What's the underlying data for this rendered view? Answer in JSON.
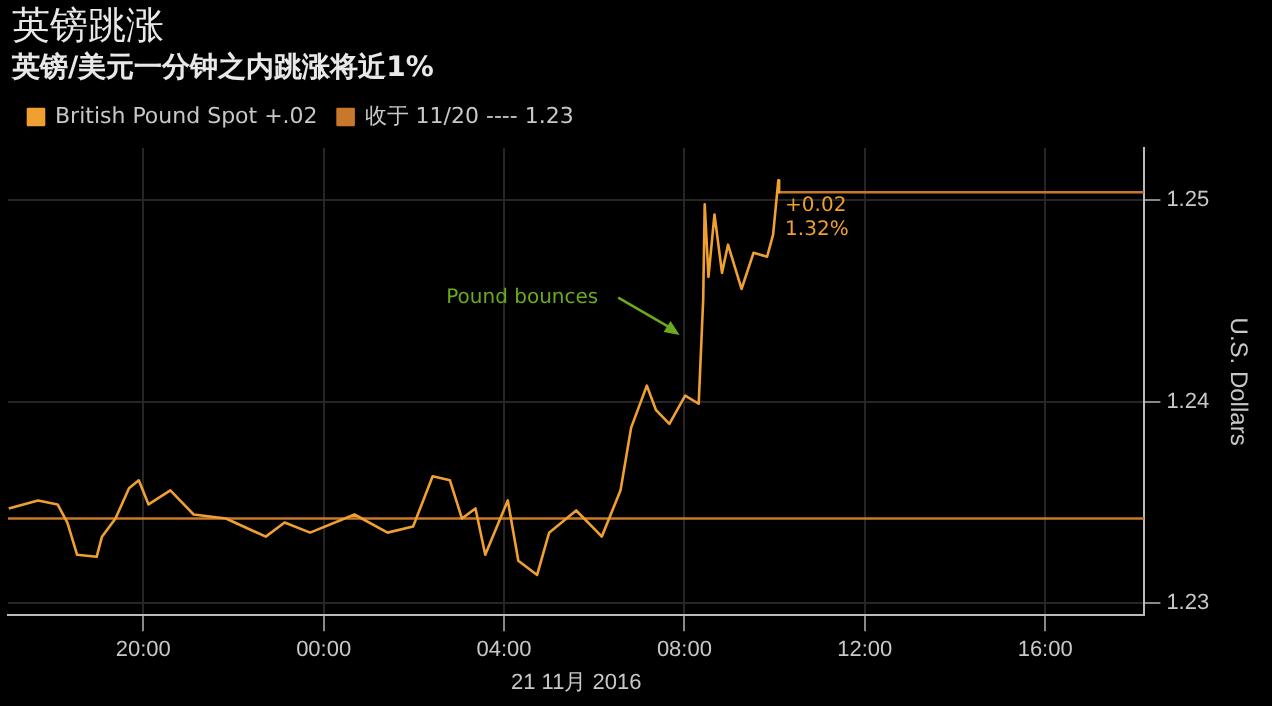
{
  "chart_data": {
    "type": "line",
    "title": "英镑跳涨",
    "subtitle": "英镑/美元一分钟之内跳涨将近1%",
    "xlabel": "21 11月 2016",
    "ylabel": "U.S. Dollars",
    "xlim": [
      "2016-11-20T17:00",
      "2016-11-21T18:12"
    ],
    "xticks": [
      {
        "value": "2016-11-20T20:00",
        "label": "20:00"
      },
      {
        "value": "2016-11-21T00:00",
        "label": "00:00"
      },
      {
        "value": "2016-11-21T04:00",
        "label": "04:00"
      },
      {
        "value": "2016-11-21T08:00",
        "label": "08:00"
      },
      {
        "value": "2016-11-21T12:00",
        "label": "12:00"
      },
      {
        "value": "2016-11-21T16:00",
        "label": "16:00"
      }
    ],
    "ylim": [
      1.2294,
      1.2526
    ],
    "yticks": [
      1.23,
      1.24,
      1.25
    ],
    "grid": true,
    "legend": "top left",
    "marker": "none",
    "line_style": "solid",
    "series": [
      {
        "name": "British Pound Spot +.02",
        "color": "#f0a030",
        "x": [
          "2016-11-20T17:01",
          "2016-11-20T17:40",
          "2016-11-20T18:06",
          "2016-11-20T18:19",
          "2016-11-20T18:32",
          "2016-11-20T18:58",
          "2016-11-20T19:05",
          "2016-11-20T19:23",
          "2016-11-20T19:41",
          "2016-11-20T19:54",
          "2016-11-20T20:07",
          "2016-11-20T20:36",
          "2016-11-20T21:07",
          "2016-11-20T21:50",
          "2016-11-20T22:43",
          "2016-11-20T23:08",
          "2016-11-20T23:42",
          "2016-11-21T00:41",
          "2016-11-21T01:25",
          "2016-11-21T01:59",
          "2016-11-21T02:25",
          "2016-11-21T02:48",
          "2016-11-21T03:04",
          "2016-11-21T03:22",
          "2016-11-21T03:35",
          "2016-11-21T04:05",
          "2016-11-21T04:19",
          "2016-11-21T04:44",
          "2016-11-21T05:00",
          "2016-11-21T05:36",
          "2016-11-21T06:05",
          "2016-11-21T06:10",
          "2016-11-21T06:35",
          "2016-11-21T06:49",
          "2016-11-21T07:10",
          "2016-11-21T07:22",
          "2016-11-21T07:40",
          "2016-11-21T08:01",
          "2016-11-21T08:19",
          "2016-11-21T08:25",
          "2016-11-21T08:27",
          "2016-11-21T08:32",
          "2016-11-21T08:40",
          "2016-11-21T08:50",
          "2016-11-21T08:58",
          "2016-11-21T09:16",
          "2016-11-21T09:32",
          "2016-11-21T09:50",
          "2016-11-21T09:58",
          "2016-11-21T10:05",
          "2016-11-21T10:06"
        ],
        "values": [
          1.2347,
          1.2351,
          1.2349,
          1.234,
          1.2324,
          1.2323,
          1.2333,
          1.2342,
          1.2357,
          1.2361,
          1.2349,
          1.2356,
          1.2344,
          1.2342,
          1.2333,
          1.234,
          1.2335,
          1.2344,
          1.2335,
          1.2338,
          1.2363,
          1.2361,
          1.2342,
          1.2347,
          1.2324,
          1.2351,
          1.2321,
          1.2314,
          1.2335,
          1.2346,
          1.2335,
          1.2333,
          1.2356,
          1.2387,
          1.2408,
          1.2396,
          1.2389,
          1.2403,
          1.2399,
          1.2451,
          1.2498,
          1.2462,
          1.2493,
          1.2464,
          1.2478,
          1.2456,
          1.2474,
          1.2472,
          1.2483,
          1.251,
          1.2504
        ]
      },
      {
        "name": "收于 11/20 ---- 1.23",
        "color": "#c8782a",
        "x": [
          "2016-11-20T17:00",
          "2016-11-21T18:12"
        ],
        "values": [
          1.2342,
          1.2342
        ]
      },
      {
        "color": "#c8782a",
        "x": [
          "2016-11-21T10:06",
          "2016-11-21T18:12"
        ],
        "values": [
          1.2504,
          1.2504
        ]
      }
    ],
    "annotations": [
      "Pound bounces",
      {
        "text": "+0.02",
        "x": "2016-11-21T10:06",
        "y": 1.2504
      },
      {
        "text": "1.32%",
        "x": "2016-11-21T10:06",
        "y": 1.2504
      }
    ]
  }
}
